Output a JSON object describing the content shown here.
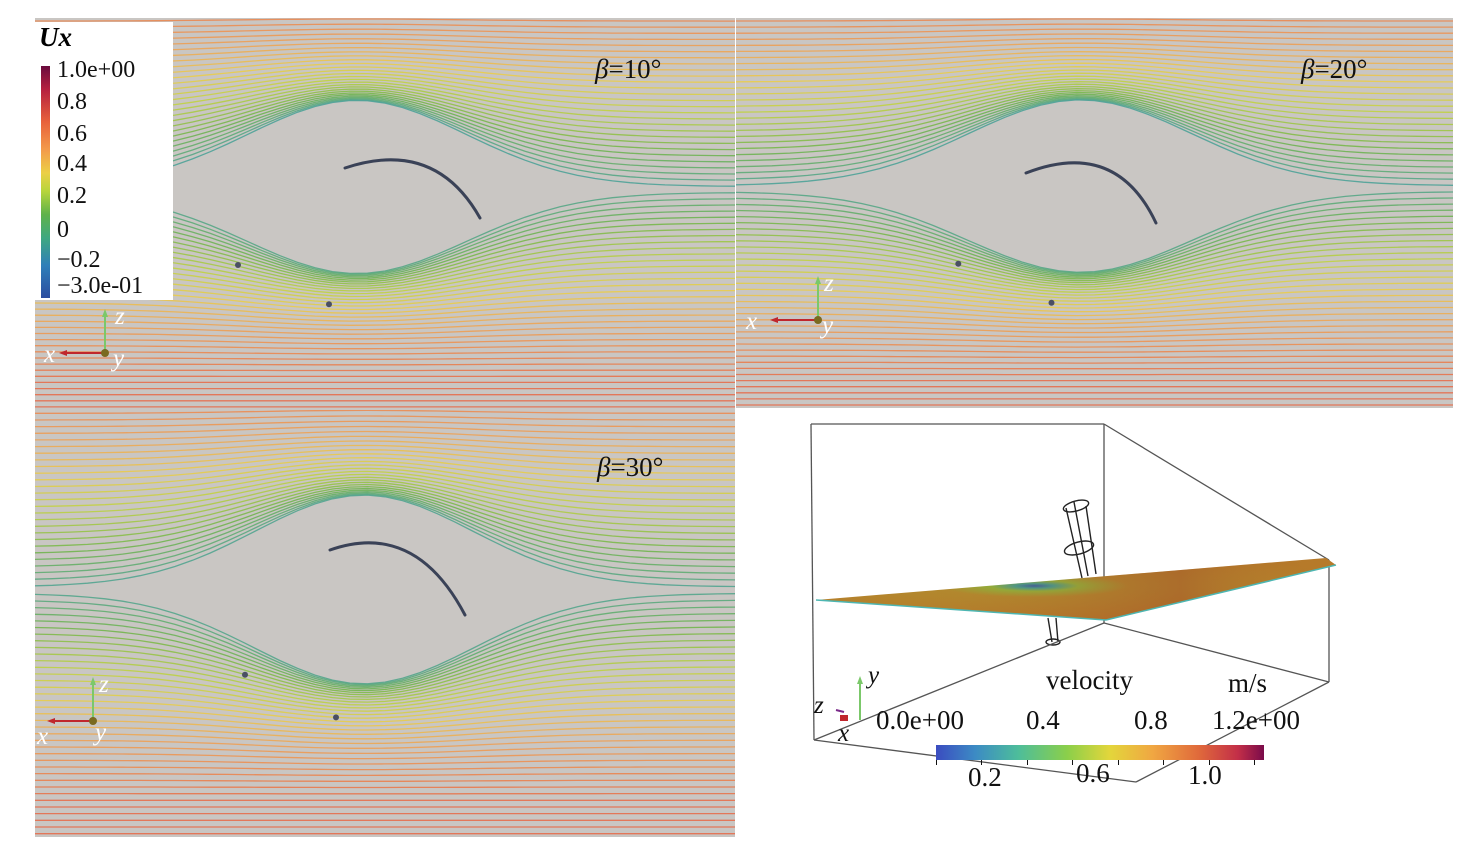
{
  "legend_ux": {
    "title": "Ux",
    "ticks": [
      "1.0e+00",
      "0.8",
      "0.6",
      "0.4",
      "0.2",
      "0",
      "−0.2",
      "−3.0e-01"
    ],
    "colors": {
      "max": "#6a0b3d",
      "high": "#e8613b",
      "mid": "#eccf46",
      "zero": "#5fb24a",
      "min": "#2c4da0"
    }
  },
  "panels": [
    {
      "beta_symbol": "β",
      "beta_value": "=10°"
    },
    {
      "beta_symbol": "β",
      "beta_value": "=20°"
    },
    {
      "beta_symbol": "β",
      "beta_value": "=30°"
    }
  ],
  "axes": {
    "x": "x",
    "y": "y",
    "z": "z"
  },
  "view3d": {
    "legend_title": "velocity",
    "units": "m/s",
    "top_ticks": [
      "0.0e+00",
      "0.4",
      "0.8",
      "1.2e+00"
    ],
    "bottom_ticks": [
      "0.2",
      "0.6",
      "1.0"
    ]
  }
}
